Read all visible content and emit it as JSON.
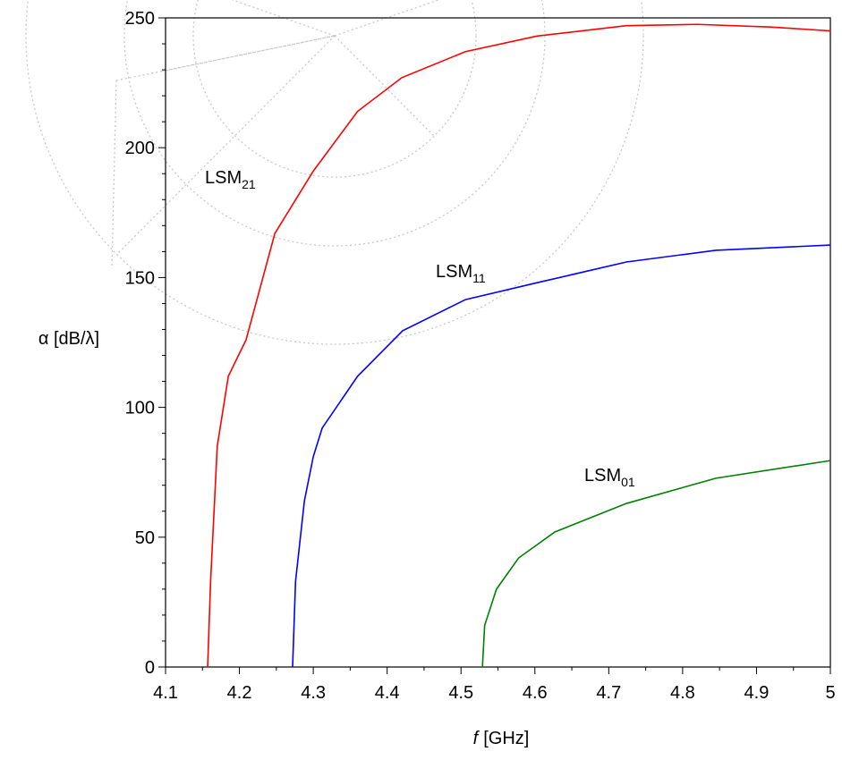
{
  "chart_data": {
    "type": "line",
    "xlabel_var": "f",
    "xlabel_unit": "[GHz]",
    "ylabel": "α [dB/λ]",
    "xlim": [
      4.1,
      5
    ],
    "ylim": [
      0,
      250
    ],
    "xticks": [
      4.1,
      4.2,
      4.3,
      4.4,
      4.5,
      4.6,
      4.7,
      4.8,
      4.9,
      5
    ],
    "yticks": [
      0,
      50,
      100,
      150,
      200,
      250
    ],
    "xminor": [
      4.15,
      4.25,
      4.35,
      4.45,
      4.55,
      4.65,
      4.75,
      4.85,
      4.95
    ],
    "yminor": [
      10,
      20,
      30,
      40,
      60,
      70,
      80,
      90,
      110,
      120,
      130,
      140,
      160,
      170,
      180,
      190,
      210,
      220,
      230,
      240
    ],
    "series": [
      {
        "name": "LSM",
        "subscript": "21",
        "color": "#ff0000",
        "x": [
          4.157,
          4.161,
          4.17,
          4.185,
          4.209,
          4.248,
          4.3,
          4.36,
          4.42,
          4.506,
          4.603,
          4.724,
          4.82,
          4.918,
          5
        ],
        "values": [
          0,
          33,
          85,
          112,
          126,
          167,
          191,
          214,
          227,
          237,
          243,
          247,
          247.5,
          246.5,
          245
        ]
      },
      {
        "name": "LSM",
        "subscript": "11",
        "color": "#0000ff",
        "x": [
          4.272,
          4.276,
          4.288,
          4.3,
          4.312,
          4.36,
          4.421,
          4.506,
          4.603,
          4.724,
          4.845,
          5
        ],
        "values": [
          0,
          33,
          64,
          81,
          92,
          112,
          129.5,
          141.5,
          148,
          156,
          160.5,
          162.5
        ]
      },
      {
        "name": "LSM",
        "subscript": "01",
        "color": "#008000",
        "x": [
          4.529,
          4.532,
          4.548,
          4.578,
          4.627,
          4.724,
          4.845,
          5
        ],
        "values": [
          0,
          16,
          30,
          42,
          52,
          63,
          72.7,
          79.5
        ]
      }
    ]
  }
}
